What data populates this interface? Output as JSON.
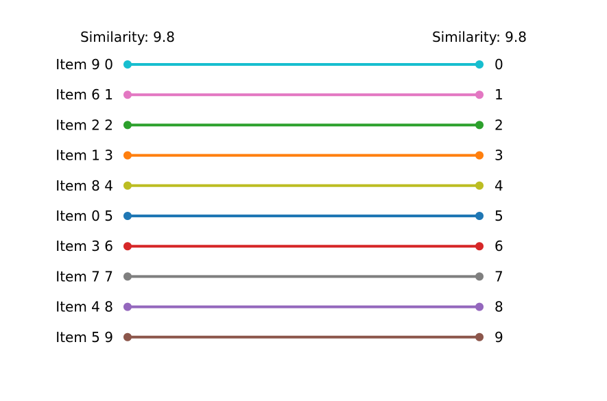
{
  "chart_data": {
    "type": "slopegraph",
    "left_header": "Similarity: 9.8",
    "right_header": "Similarity: 9.8",
    "items": [
      {
        "name": "Item 9",
        "left_rank": 0,
        "right_rank": 0,
        "color": "#17becf"
      },
      {
        "name": "Item 6",
        "left_rank": 1,
        "right_rank": 1,
        "color": "#e377c2"
      },
      {
        "name": "Item 2",
        "left_rank": 2,
        "right_rank": 2,
        "color": "#2ca02c"
      },
      {
        "name": "Item 1",
        "left_rank": 3,
        "right_rank": 3,
        "color": "#ff7f0e"
      },
      {
        "name": "Item 8",
        "left_rank": 4,
        "right_rank": 4,
        "color": "#bcbd22"
      },
      {
        "name": "Item 0",
        "left_rank": 5,
        "right_rank": 5,
        "color": "#1f77b4"
      },
      {
        "name": "Item 3",
        "left_rank": 6,
        "right_rank": 6,
        "color": "#d62728"
      },
      {
        "name": "Item 7",
        "left_rank": 7,
        "right_rank": 7,
        "color": "#7f7f7f"
      },
      {
        "name": "Item 4",
        "left_rank": 8,
        "right_rank": 8,
        "color": "#9467bd"
      },
      {
        "name": "Item 5",
        "left_rank": 9,
        "right_rank": 9,
        "color": "#8c564b"
      }
    ]
  }
}
